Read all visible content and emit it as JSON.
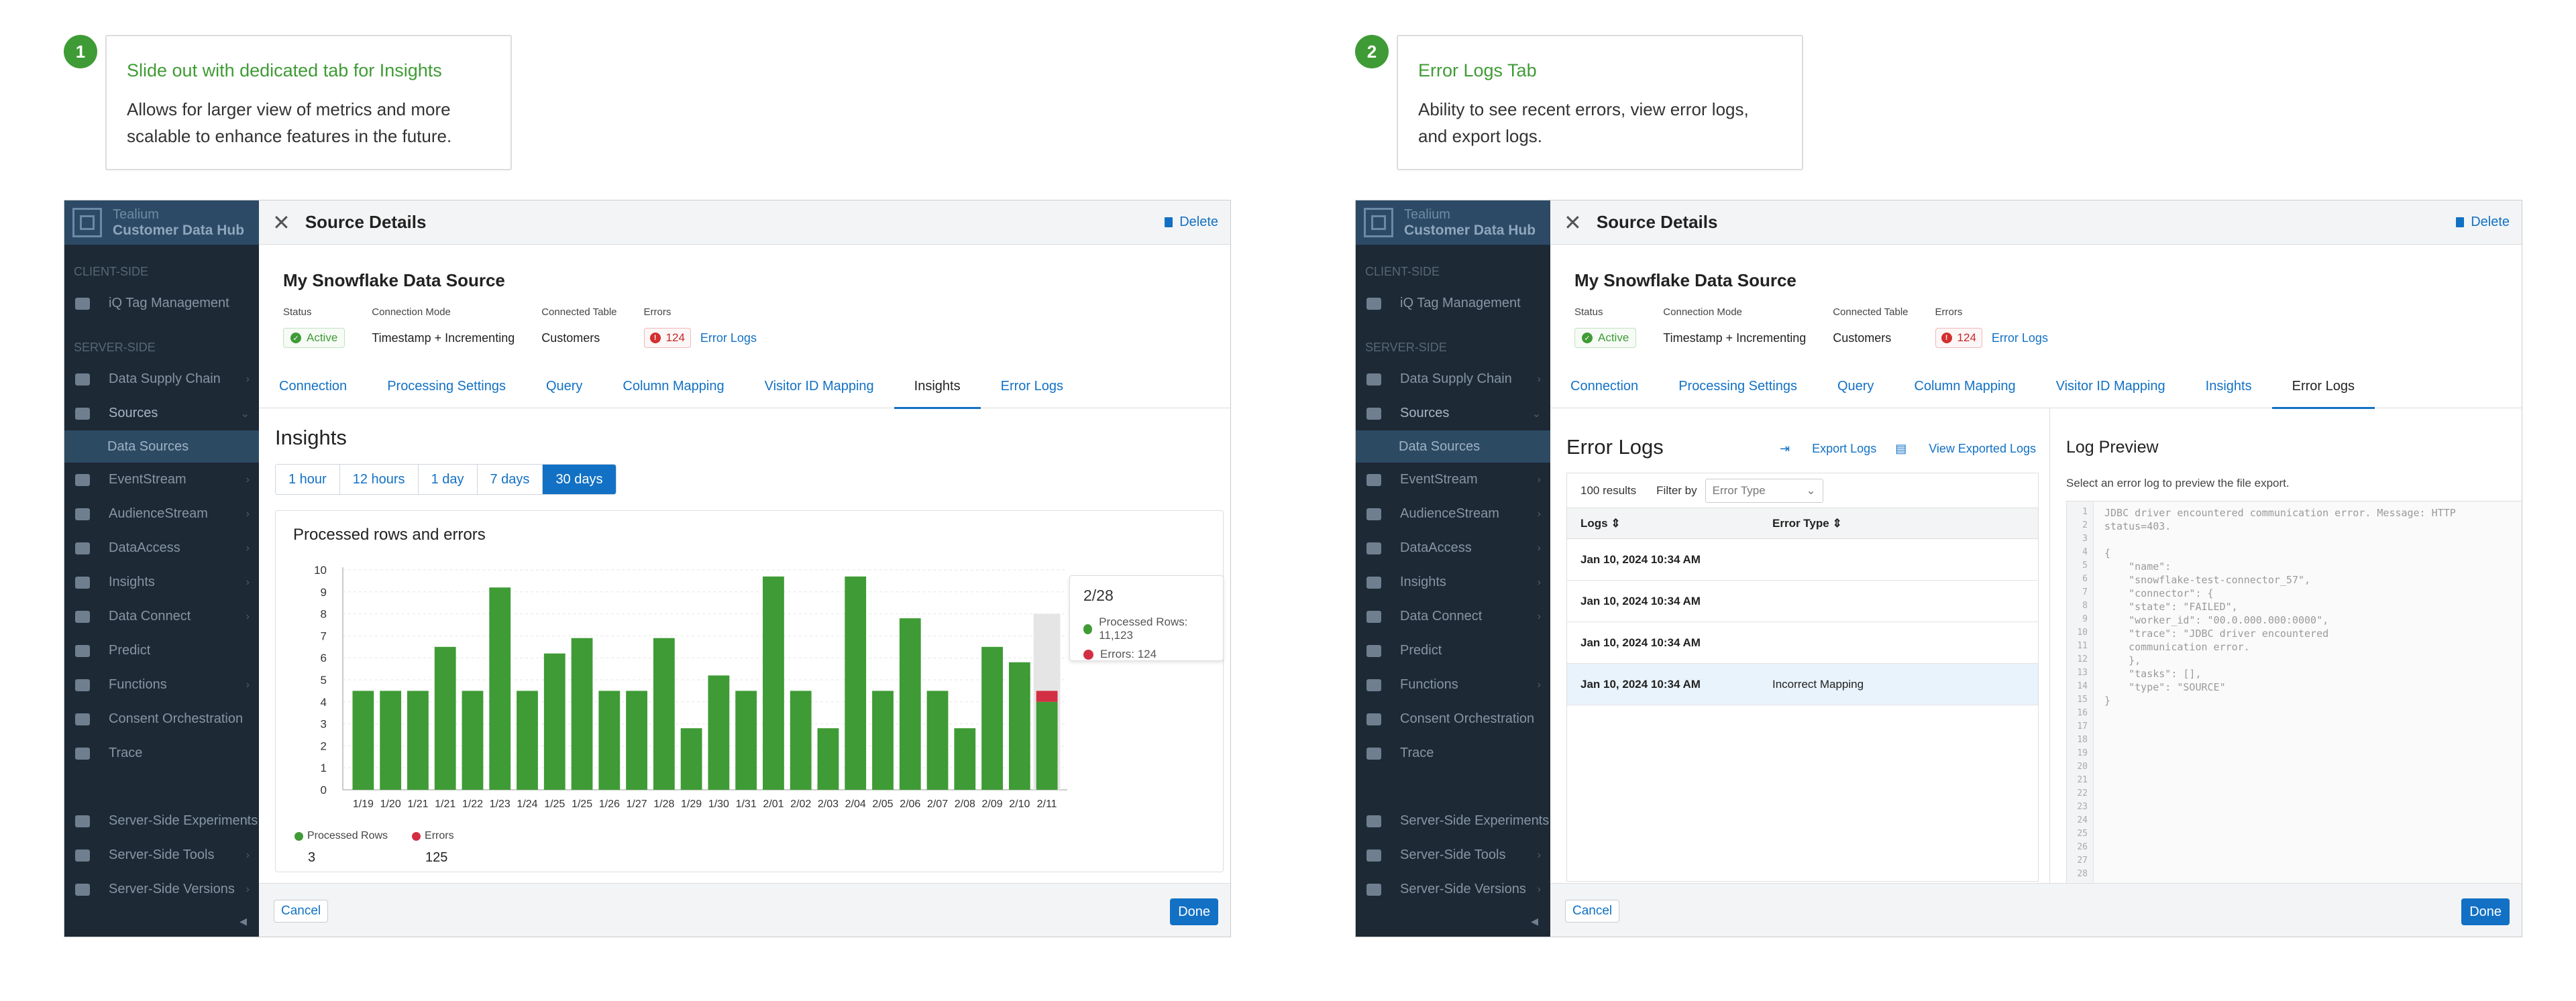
{
  "panels": [
    {
      "step": "1",
      "callout": {
        "title": "Slide out with dedicated tab for Insights",
        "desc": "Allows for larger view of metrics and more scalable to enhance features in the future."
      }
    },
    {
      "step": "2",
      "callout": {
        "title": "Error Logs Tab",
        "desc": "Ability to see recent errors, view error logs, and export logs."
      }
    }
  ],
  "sidebar": {
    "brand1": "Tealium",
    "brand2": "Customer Data Hub",
    "client_section": "CLIENT-SIDE",
    "server_section": "SERVER-SIDE",
    "items": {
      "tag_mgmt": "iQ Tag Management",
      "supply_chain": "Data Supply Chain",
      "sources": "Sources",
      "data_sources": "Data Sources",
      "eventstream": "EventStream",
      "audiencestream": "AudienceStream",
      "dataaccess": "DataAccess",
      "insights": "Insights",
      "data_connect": "Data Connect",
      "predict": "Predict",
      "functions": "Functions",
      "consent": "Consent Orchestration",
      "trace": "Trace",
      "experiments": "Server-Side Experiments",
      "tools": "Server-Side Tools",
      "versions": "Server-Side Versions"
    }
  },
  "header": {
    "title": "Source Details",
    "delete": "Delete"
  },
  "source": {
    "name": "My Snowflake Data Source",
    "status_label": "Status",
    "status_value": "Active",
    "mode_label": "Connection Mode",
    "mode_value": "Timestamp + Incrementing",
    "table_label": "Connected Table",
    "table_value": "Customers",
    "errors_label": "Errors",
    "errors_value": "124",
    "errors_link": "Error Logs"
  },
  "tabs": [
    "Connection",
    "Processing Settings",
    "Query",
    "Column Mapping",
    "Visitor ID Mapping",
    "Insights",
    "Error Logs"
  ],
  "footer": {
    "cancel": "Cancel",
    "done": "Done"
  },
  "insights": {
    "title": "Insights",
    "ranges": [
      "1 hour",
      "12 hours",
      "1 day",
      "7 days",
      "30 days"
    ],
    "selected_range": "30 days",
    "card_title": "Processed rows and errors",
    "legend": [
      {
        "name": "Processed Rows",
        "value": "3",
        "color": "#3f9b35"
      },
      {
        "name": "Errors",
        "value": "125",
        "color": "#d32f44"
      }
    ],
    "tooltip": {
      "date": "2/28",
      "processed": "Processed Rows: 11,123",
      "errors": "Errors: 124"
    }
  },
  "chart_data": {
    "type": "bar",
    "title": "Processed rows and errors",
    "categories": [
      "1/19",
      "1/20",
      "1/21",
      "1/21",
      "1/22",
      "1/23",
      "1/24",
      "1/25",
      "1/25",
      "1/26",
      "1/27",
      "1/28",
      "1/29",
      "1/30",
      "1/31",
      "2/01",
      "2/02",
      "2/03",
      "2/04",
      "2/05",
      "2/06",
      "2/07",
      "2/08",
      "2/09",
      "2/10",
      "2/11"
    ],
    "series": [
      {
        "name": "Processed Rows",
        "values": [
          4.5,
          4.5,
          4.5,
          6.5,
          4.5,
          9.2,
          4.5,
          6.2,
          6.9,
          4.5,
          4.5,
          6.9,
          2.8,
          5.2,
          4.5,
          9.7,
          4.5,
          2.8,
          9.7,
          4.5,
          7.8,
          4.5,
          2.8,
          6.5,
          5.8,
          4.0
        ]
      },
      {
        "name": "Errors",
        "values": [
          0,
          0,
          0,
          0,
          0,
          0,
          0,
          0,
          0,
          0,
          0,
          0,
          0,
          0,
          0,
          0,
          0,
          0,
          0,
          0,
          0,
          0,
          0,
          0,
          0,
          0.5
        ]
      }
    ],
    "ylim": [
      0,
      10
    ],
    "yticks": [
      "0",
      "1",
      "2",
      "3",
      "4",
      "5",
      "6",
      "7",
      "8",
      "9",
      "10"
    ],
    "grid": true
  },
  "errorlogs": {
    "title": "Error Logs",
    "export": "Export Logs",
    "view_exported": "View Exported Logs",
    "results": "100 results",
    "filter_label": "Filter by",
    "filter_placeholder": "Error Type",
    "col_logs": "Logs",
    "col_type": "Error Type",
    "rows": [
      {
        "date": "Jan 10, 2024 10:34 AM",
        "type": ""
      },
      {
        "date": "Jan 10, 2024 10:34 AM",
        "type": ""
      },
      {
        "date": "Jan 10, 2024 10:34 AM",
        "type": ""
      },
      {
        "date": "Jan 10, 2024 10:34 AM",
        "type": "Incorrect Mapping"
      }
    ]
  },
  "log_preview": {
    "title": "Log Preview",
    "subtitle": "Select an error log to preview the file export.",
    "lines": [
      "JDBC driver encountered communication error. Message: HTTP",
      "status=403.",
      "",
      "{",
      "    \"name\":",
      "    \"snowflake-test-connector_57\",",
      "    \"connector\": {",
      "    \"state\": \"FAILED\",",
      "    \"worker_id\": \"00.0.000.000:0000\",",
      "    \"trace\": \"JDBC driver encountered",
      "    communication error.",
      "    },",
      "    \"tasks\": [],",
      "    \"type\": \"SOURCE\"",
      "}"
    ],
    "line_numbers": [
      "1",
      "2",
      "3",
      "4",
      "5",
      "6",
      "7",
      "8",
      "9",
      "10",
      "11",
      "12",
      "13",
      "14",
      "15",
      "16",
      "17",
      "18",
      "19",
      "20",
      "21",
      "22",
      "23",
      "24",
      "25",
      "26",
      "27",
      "28"
    ]
  }
}
